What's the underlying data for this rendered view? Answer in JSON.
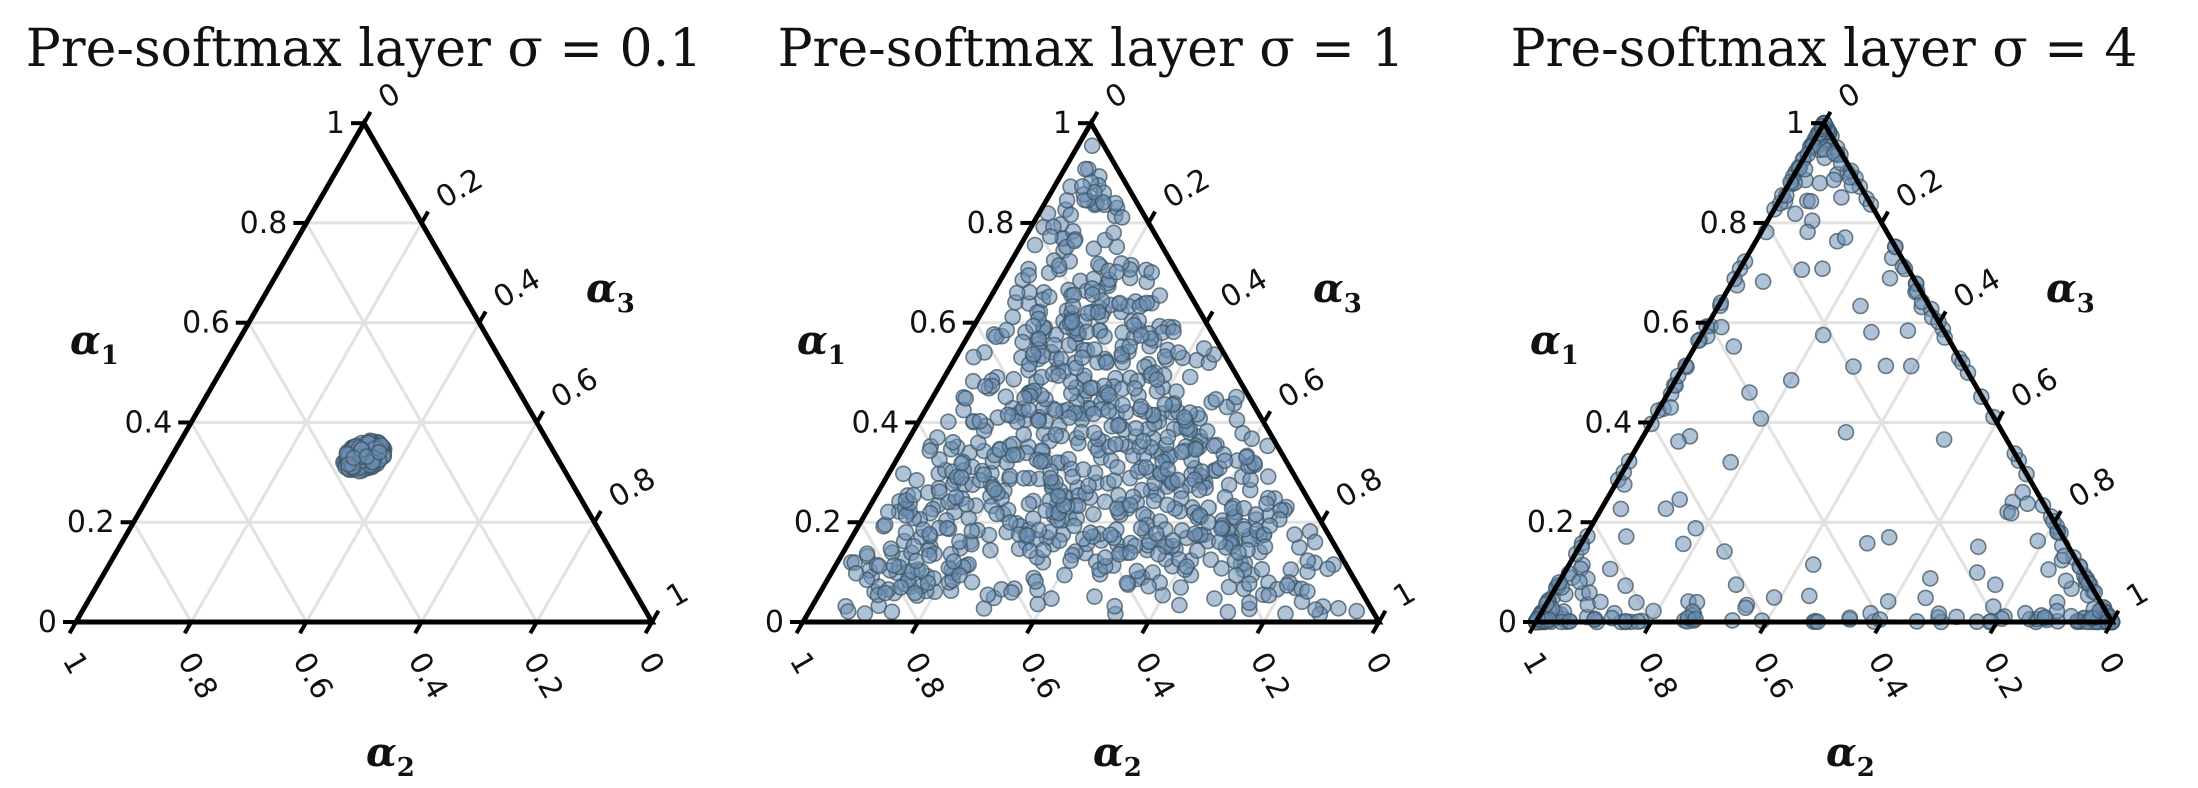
{
  "chart_data": [
    {
      "type": "scatter",
      "subtype": "ternary",
      "title": "Pre-softmax layer σ = 0.1",
      "axes": {
        "left": {
          "label": "α",
          "sub": "1",
          "ticks": [
            "0",
            "0.2",
            "0.4",
            "0.6",
            "0.8",
            "1"
          ]
        },
        "right": {
          "label": "α",
          "sub": "3",
          "ticks": [
            "0",
            "0.2",
            "0.4",
            "0.6",
            "0.8",
            "1"
          ]
        },
        "bottom": {
          "label": "α",
          "sub": "2",
          "ticks": [
            "1",
            "0.8",
            "0.6",
            "0.4",
            "0.2",
            "0"
          ]
        }
      },
      "grid": true,
      "series": [
        {
          "distribution": "tight cluster around the centroid",
          "center": [
            0.333,
            0.333,
            0.334
          ],
          "spread": 0.035,
          "count": 200
        }
      ]
    },
    {
      "type": "scatter",
      "subtype": "ternary",
      "title": "Pre-softmax layer σ = 1",
      "axes": {
        "left": {
          "label": "α",
          "sub": "1",
          "ticks": [
            "0",
            "0.2",
            "0.4",
            "0.6",
            "0.8",
            "1"
          ]
        },
        "right": {
          "label": "α",
          "sub": "3",
          "ticks": [
            "0",
            "0.2",
            "0.4",
            "0.6",
            "0.8",
            "1"
          ]
        },
        "bottom": {
          "label": "α",
          "sub": "2",
          "ticks": [
            "1",
            "0.8",
            "0.6",
            "0.4",
            "0.2",
            "0"
          ]
        }
      },
      "grid": true,
      "series": [
        {
          "distribution": "spread over the interior of the simplex",
          "center": [
            0.333,
            0.333,
            0.334
          ],
          "spread": 1.0,
          "count": 850
        }
      ]
    },
    {
      "type": "scatter",
      "subtype": "ternary",
      "title": "Pre-softmax layer σ = 4",
      "axes": {
        "left": {
          "label": "α",
          "sub": "1",
          "ticks": [
            "0",
            "0.2",
            "0.4",
            "0.6",
            "0.8",
            "1"
          ]
        },
        "right": {
          "label": "α",
          "sub": "3",
          "ticks": [
            "0",
            "0.2",
            "0.4",
            "0.6",
            "0.8",
            "1"
          ]
        },
        "bottom": {
          "label": "α",
          "sub": "2",
          "ticks": [
            "1",
            "0.8",
            "0.6",
            "0.4",
            "0.2",
            "0"
          ]
        }
      },
      "grid": true,
      "series": [
        {
          "distribution": "concentrated along edges and corners of the simplex",
          "center": [
            0.333,
            0.333,
            0.334
          ],
          "spread": 4.0,
          "count": 500
        }
      ]
    }
  ]
}
